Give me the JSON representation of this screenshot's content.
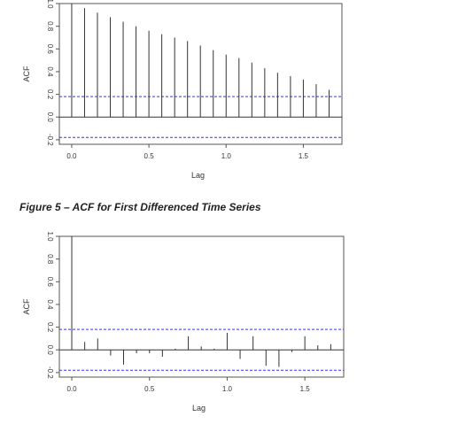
{
  "caption": "Figure 5 – ACF for First Differenced Time Series",
  "colors": {
    "bars": "#333333",
    "ci": "#3333ff",
    "frame": "#555555"
  },
  "chart_data": [
    {
      "type": "bar",
      "title": "",
      "xlabel": "Lag",
      "ylabel": "ACF",
      "xlim": [
        -0.08,
        1.75
      ],
      "ylim": [
        -0.24,
        1.0
      ],
      "xticks": [
        "0.0",
        "0.5",
        "1.0",
        "1.5"
      ],
      "yticks": [
        "-0.2",
        "0.0",
        "0.2",
        "0.4",
        "0.6",
        "0.8",
        "1.0"
      ],
      "confidence_band": 0.18,
      "x": [
        0,
        0.0833,
        0.1667,
        0.25,
        0.3333,
        0.4167,
        0.5,
        0.5833,
        0.6667,
        0.75,
        0.8333,
        0.9167,
        1.0,
        1.0833,
        1.1667,
        1.25,
        1.3333,
        1.4167,
        1.5,
        1.5833,
        1.6667
      ],
      "values": [
        1.0,
        0.96,
        0.92,
        0.88,
        0.84,
        0.8,
        0.76,
        0.73,
        0.7,
        0.67,
        0.63,
        0.59,
        0.55,
        0.52,
        0.48,
        0.43,
        0.39,
        0.36,
        0.33,
        0.29,
        0.24
      ]
    },
    {
      "type": "bar",
      "title": "",
      "xlabel": "Lag",
      "ylabel": "ACF",
      "xlim": [
        -0.08,
        1.75
      ],
      "ylim": [
        -0.24,
        1.0
      ],
      "xticks": [
        "0.0",
        "0.5",
        "1.0",
        "1.5"
      ],
      "yticks": [
        "-0.2",
        "0.0",
        "0.2",
        "0.4",
        "0.6",
        "0.8",
        "1.0"
      ],
      "confidence_band": 0.18,
      "x": [
        0,
        0.0833,
        0.1667,
        0.25,
        0.3333,
        0.4167,
        0.5,
        0.5833,
        0.6667,
        0.75,
        0.8333,
        0.9167,
        1.0,
        1.0833,
        1.1667,
        1.25,
        1.3333,
        1.4167,
        1.5,
        1.5833,
        1.6667
      ],
      "values": [
        1.0,
        0.07,
        0.1,
        -0.05,
        -0.13,
        -0.03,
        -0.03,
        -0.06,
        0.01,
        0.12,
        0.03,
        0.01,
        0.15,
        -0.08,
        0.12,
        -0.14,
        -0.15,
        -0.02,
        0.12,
        0.04,
        0.05
      ]
    }
  ]
}
